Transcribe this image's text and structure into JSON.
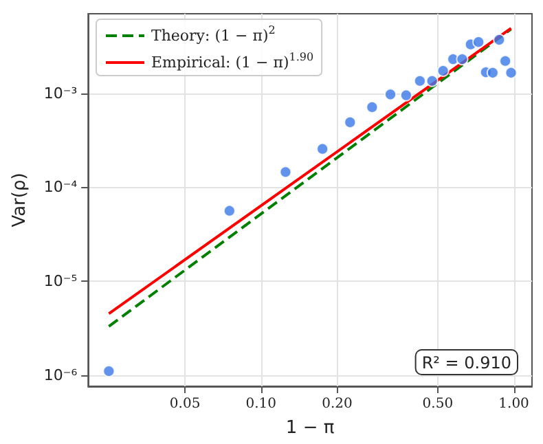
{
  "chart_data": {
    "type": "scatter",
    "xlabel": "1 − π",
    "ylabel": "Var(ρ)",
    "log": "xy",
    "xlim": [
      0.0207,
      1.18
    ],
    "ylim": [
      7.6e-07,
      0.007
    ],
    "xticks": [
      0.05,
      {
        "value": 0.1,
        "label": "0.10"
      },
      {
        "value": 0.2,
        "label": "0.20"
      },
      {
        "value": 0.5,
        "label": "0.50"
      },
      {
        "value": 1,
        "label": "1.00"
      }
    ],
    "yticks": [
      {
        "value": 1e-06,
        "label": "10⁻⁶"
      },
      {
        "value": 1e-05,
        "label": "10⁻⁵"
      },
      {
        "value": 0.0001,
        "label": "10⁻⁴"
      },
      {
        "value": 0.001,
        "label": "10⁻³"
      }
    ],
    "grid": true,
    "legend": "top left",
    "annotations": [
      "R² = 0.910"
    ],
    "series": [
      {
        "color": "#3b78e7",
        "marker": "circle",
        "x": [
          0.025,
          0.075,
          0.125,
          0.175,
          0.225,
          0.275,
          0.325,
          0.375,
          0.425,
          0.475,
          0.525,
          0.575,
          0.625,
          0.675,
          0.725,
          0.775,
          0.825,
          0.875,
          0.925,
          0.975
        ],
        "values": [
          1.1e-06,
          5.6e-05,
          0.000145,
          0.000255,
          0.00049,
          0.00071,
          0.00097,
          0.00095,
          0.00135,
          0.00135,
          0.00173,
          0.0023,
          0.0023,
          0.0033,
          0.0035,
          0.00167,
          0.00165,
          0.0037,
          0.0022,
          0.00165
        ]
      },
      {
        "type": "line",
        "name": "Theory: (1 − π)$^{2}$",
        "color": "#008000",
        "line_style": "dashed",
        "marker": "none",
        "x": [
          0.025,
          0.975
        ],
        "values": [
          3.3e-06,
          0.0048
        ]
      },
      {
        "type": "line",
        "name": "Empirical: (1 − π)$^{1.90}$",
        "color": "#ff0000",
        "line_style": "solid",
        "marker": "none",
        "x": [
          0.025,
          0.975
        ],
        "values": [
          4.5e-06,
          0.0049
        ]
      }
    ]
  }
}
